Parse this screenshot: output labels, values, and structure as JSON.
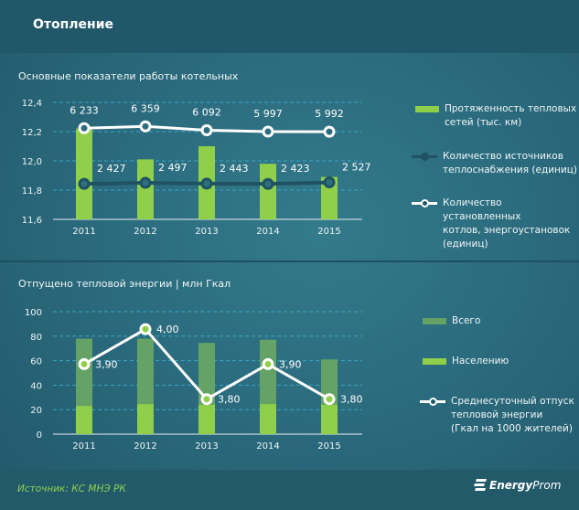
{
  "header": {
    "title": "Отопление"
  },
  "footer": {
    "source": "Источник: КС МНЭ РК",
    "logo_text_bold": "Energy",
    "logo_text": "Prom"
  },
  "colors": {
    "bar_green": "#8fcf4a",
    "bar_total": "#65a266",
    "line_white": "#ffffff",
    "line_dark": "#1f5263",
    "grid": "#3aa6c4"
  },
  "chart_data": [
    {
      "type": "bar+line",
      "title": "Основные показатели работы котельных",
      "categories": [
        "2011",
        "2012",
        "2013",
        "2014",
        "2015"
      ],
      "ylim": [
        11.6,
        12.4
      ],
      "yticks": [
        "12,4",
        "12,2",
        "12,0",
        "11,8",
        "11,6"
      ],
      "ytick_values": [
        12.4,
        12.2,
        12.0,
        11.8,
        11.6
      ],
      "y2lim": [
        0,
        8000
      ],
      "grid": true,
      "legend_placement": "right",
      "series": [
        {
          "name": "Протяженность тепловых сетей (тыс. км)",
          "kind": "bar",
          "axis": "left",
          "values": [
            12.22,
            12.01,
            12.1,
            11.98,
            11.89
          ]
        },
        {
          "name": "Количество источников теплоснабжения (единиц)",
          "kind": "line",
          "axis": "right",
          "values": [
            2427,
            2497,
            2443,
            2423,
            2527
          ],
          "labels": [
            "2 427",
            "2 497",
            "2 443",
            "2 423",
            "2 527"
          ]
        },
        {
          "name": "Количество установленных котлов, энергоустановок (единиц)",
          "kind": "line",
          "axis": "right",
          "values": [
            6233,
            6359,
            6092,
            5997,
            5992
          ],
          "labels": [
            "6 233",
            "6 359",
            "6 092",
            "5 997",
            "5 992"
          ]
        }
      ],
      "legend": [
        "Протяженность тепловых",
        "сетей (тыс. км)",
        "Количество источников",
        "теплоснабжения (единиц)",
        "Количество установленных",
        "котлов, энергоустановок",
        "(единиц)"
      ]
    },
    {
      "type": "bar+line",
      "title": "Отпущено тепловой энергии  |  млн Гкал",
      "categories": [
        "2011",
        "2012",
        "2013",
        "2014",
        "2015"
      ],
      "ylim": [
        0,
        100
      ],
      "yticks": [
        "100",
        "80",
        "60",
        "40",
        "20",
        "0"
      ],
      "ytick_values": [
        100,
        80,
        60,
        40,
        20,
        0
      ],
      "y2lim": [
        3.7,
        4.05
      ],
      "grid": true,
      "legend_placement": "right",
      "series": [
        {
          "name": "Всего",
          "kind": "bar",
          "axis": "left",
          "values": [
            78,
            78,
            74.5,
            77,
            61
          ]
        },
        {
          "name": "Населению",
          "kind": "bar",
          "axis": "left",
          "values": [
            23,
            24.5,
            24,
            24.5,
            24
          ]
        },
        {
          "name": "Среднесуточный отпуск тепловой энергии (Гкал на 1000 жителей)",
          "kind": "line",
          "axis": "right",
          "values": [
            3.9,
            4.0,
            3.8,
            3.9,
            3.8
          ],
          "labels": [
            "3,90",
            "4,00",
            "3,80",
            "3,90",
            "3,80"
          ]
        }
      ],
      "legend": [
        "Всего",
        "Населению",
        "Среднесуточный отпуск",
        "тепловой энергии",
        "(Гкал на 1000 жителей)"
      ]
    }
  ]
}
